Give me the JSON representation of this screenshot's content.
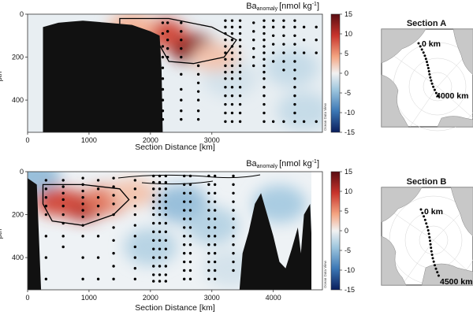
{
  "chart_data": [
    {
      "type": "heatmap",
      "panel": "A",
      "xlabel": "Section Distance [km]",
      "x_ticks": [
        0,
        1000,
        2000,
        3000
      ],
      "xlim": [
        0,
        4800
      ],
      "y_ticks": [
        0,
        200,
        400
      ],
      "ylim": [
        550,
        0
      ],
      "ylabel_partial": "…pth",
      "colorbar": {
        "label_main": "Ba",
        "label_sub": "anomaly",
        "label_unit": "[nmol kg",
        "label_exp": "-1",
        "label_close": "]",
        "ticks": [
          15,
          10,
          5,
          0,
          -5,
          -10,
          -15
        ],
        "range": [
          -15,
          15
        ]
      },
      "watermark": "Ocean Data View",
      "positive_anomalies": [
        {
          "x": 2700,
          "y": 160,
          "value": 13
        },
        {
          "x": 2200,
          "y": 90,
          "value": 9
        },
        {
          "x": 1700,
          "y": 60,
          "value": 4
        },
        {
          "x": 3050,
          "y": 200,
          "value": 3
        }
      ],
      "negative_anomalies": [
        {
          "x": 3300,
          "y": 300,
          "value": -2
        },
        {
          "x": 4300,
          "y": 250,
          "value": -3
        },
        {
          "x": 4500,
          "y": 450,
          "value": -3
        }
      ],
      "contour_outline": [
        [
          1500,
          20
        ],
        [
          2300,
          20
        ],
        [
          3000,
          60
        ],
        [
          3400,
          120
        ],
        [
          3200,
          200
        ],
        [
          2700,
          230
        ],
        [
          2300,
          220
        ],
        [
          2100,
          120
        ],
        [
          1500,
          50
        ]
      ],
      "bathymetry": [
        [
          0,
          550
        ],
        [
          250,
          550
        ],
        [
          250,
          60
        ],
        [
          500,
          40
        ],
        [
          700,
          35
        ],
        [
          900,
          30
        ],
        [
          1100,
          35
        ],
        [
          1300,
          40
        ],
        [
          1500,
          45
        ],
        [
          1700,
          50
        ],
        [
          1800,
          60
        ],
        [
          2000,
          80
        ],
        [
          2150,
          100
        ],
        [
          2180,
          250
        ],
        [
          2200,
          550
        ]
      ],
      "station_columns": [
        {
          "x": 2200,
          "y": [
            40,
            90,
            150,
            200,
            250,
            300,
            350,
            400,
            450,
            490
          ]
        },
        {
          "x": 2280,
          "y": [
            40,
            80,
            120,
            160,
            200
          ]
        },
        {
          "x": 2500,
          "y": [
            40,
            80,
            120,
            160,
            200,
            280,
            350,
            400,
            450,
            490
          ]
        },
        {
          "x": 2780,
          "y": [
            240,
            280,
            320,
            360,
            400,
            450,
            490
          ]
        },
        {
          "x": 3220,
          "y": [
            30,
            60,
            90,
            120,
            150,
            180,
            210,
            240,
            270,
            300,
            340,
            380,
            420,
            460,
            500
          ]
        },
        {
          "x": 3330,
          "y": [
            30,
            60,
            90,
            120,
            150,
            180,
            210,
            240,
            270,
            300,
            340,
            380,
            420,
            460,
            500
          ]
        },
        {
          "x": 3460,
          "y": [
            30,
            60,
            90,
            120,
            150,
            180,
            210,
            240,
            270,
            300,
            340,
            380,
            420,
            460,
            500
          ]
        },
        {
          "x": 3680,
          "y": [
            40,
            80,
            120,
            160,
            200,
            240
          ]
        },
        {
          "x": 3850,
          "y": [
            30,
            60,
            90,
            120,
            150,
            180,
            210,
            240,
            270,
            300,
            340,
            380,
            420,
            460,
            500
          ]
        },
        {
          "x": 4000,
          "y": [
            30,
            60,
            100,
            140,
            180,
            220,
            500
          ]
        },
        {
          "x": 4170,
          "y": [
            30,
            60,
            100,
            140,
            180,
            220,
            260,
            500
          ]
        },
        {
          "x": 4350,
          "y": [
            30,
            60,
            100,
            140,
            180,
            220,
            260,
            300,
            340,
            380,
            420,
            460,
            500
          ]
        },
        {
          "x": 4500,
          "y": [
            60,
            120,
            180,
            500
          ]
        },
        {
          "x": 4700,
          "y": [
            60,
            120,
            180,
            500
          ]
        }
      ]
    },
    {
      "type": "heatmap",
      "panel": "B",
      "xlabel": "Section Distance [km]",
      "x_ticks": [
        0,
        1000,
        2000,
        3000,
        4000
      ],
      "xlim": [
        0,
        4800
      ],
      "y_ticks": [
        0,
        200,
        400
      ],
      "ylim": [
        550,
        0
      ],
      "ylabel_partial": "…pth",
      "colorbar": {
        "label_main": "Ba",
        "label_sub": "anomaly",
        "label_unit": "[nmol kg",
        "label_exp": "-1",
        "label_close": "]",
        "ticks": [
          15,
          10,
          5,
          0,
          -5,
          -10,
          -15
        ],
        "range": [
          -15,
          15
        ]
      },
      "watermark": "Ocean Data View",
      "positive_anomalies": [
        {
          "x": 900,
          "y": 160,
          "value": 11
        },
        {
          "x": 500,
          "y": 140,
          "value": 9
        },
        {
          "x": 1300,
          "y": 130,
          "value": 7
        },
        {
          "x": 1700,
          "y": 100,
          "value": 3
        }
      ],
      "negative_anomalies": [
        {
          "x": 2500,
          "y": 150,
          "value": -6
        },
        {
          "x": 2000,
          "y": 350,
          "value": -4
        },
        {
          "x": 3000,
          "y": 250,
          "value": -4
        },
        {
          "x": 4100,
          "y": 150,
          "value": -5
        },
        {
          "x": 3300,
          "y": 450,
          "value": -2
        },
        {
          "x": 100,
          "y": 20,
          "value": -6
        }
      ],
      "contour_outline": [
        [
          250,
          60
        ],
        [
          900,
          60
        ],
        [
          1500,
          80
        ],
        [
          1650,
          130
        ],
        [
          1400,
          200
        ],
        [
          900,
          250
        ],
        [
          400,
          230
        ],
        [
          250,
          150
        ]
      ],
      "bathymetry": [
        [
          0,
          550
        ],
        [
          0,
          30
        ],
        [
          150,
          60
        ],
        [
          220,
          550
        ],
        [
          3450,
          550
        ],
        [
          3500,
          380
        ],
        [
          3600,
          280
        ],
        [
          3700,
          150
        ],
        [
          3800,
          100
        ],
        [
          3900,
          200
        ],
        [
          4000,
          300
        ],
        [
          4100,
          420
        ],
        [
          4200,
          450
        ],
        [
          4300,
          360
        ],
        [
          4400,
          260
        ],
        [
          4450,
          380
        ],
        [
          4500,
          200
        ],
        [
          4600,
          150
        ],
        [
          4650,
          480
        ],
        [
          4800,
          550
        ]
      ],
      "station_columns": [
        {
          "x": 300,
          "y": [
            40,
            80,
            120,
            160,
            200,
            300,
            400,
            500
          ]
        },
        {
          "x": 580,
          "y": [
            40,
            70,
            100,
            130,
            160,
            200,
            240,
            300,
            350
          ]
        },
        {
          "x": 900,
          "y": [
            30,
            60,
            90,
            120,
            150,
            180,
            210,
            250,
            300,
            400,
            500
          ]
        },
        {
          "x": 1150,
          "y": [
            40,
            80,
            120,
            160,
            200,
            300,
            400,
            500
          ]
        },
        {
          "x": 1400,
          "y": [
            30,
            70,
            110,
            150,
            200,
            260,
            320,
            380,
            440,
            500
          ]
        },
        {
          "x": 1750,
          "y": [
            40,
            80,
            120,
            160,
            200,
            250,
            300,
            350,
            400,
            450,
            500
          ]
        },
        {
          "x": 2050,
          "y": [
            20,
            50,
            80,
            110,
            140,
            170,
            200,
            240,
            280,
            320,
            360,
            400,
            440,
            480,
            510
          ]
        },
        {
          "x": 2150,
          "y": [
            20,
            50,
            80,
            110,
            140,
            170,
            200,
            240,
            280,
            320,
            360,
            400,
            440,
            480,
            510
          ]
        },
        {
          "x": 2250,
          "y": [
            20,
            50,
            80,
            110,
            140,
            170,
            200,
            240,
            280,
            320,
            360,
            400,
            440,
            480,
            510
          ]
        },
        {
          "x": 2550,
          "y": [
            20,
            60,
            100,
            140,
            180,
            220,
            260,
            300,
            340,
            380,
            420,
            460,
            500
          ]
        },
        {
          "x": 2650,
          "y": [
            20,
            60,
            100,
            140,
            180,
            220,
            260,
            300,
            340,
            380,
            420,
            460,
            500
          ]
        },
        {
          "x": 2950,
          "y": [
            20,
            60,
            100,
            140,
            180,
            220,
            260,
            300,
            340,
            380,
            420,
            460,
            500
          ]
        },
        {
          "x": 3050,
          "y": [
            20,
            60,
            100,
            140,
            180,
            220,
            260,
            300,
            340,
            380,
            420,
            460,
            500
          ]
        },
        {
          "x": 3350,
          "y": [
            20,
            60,
            100,
            140,
            180,
            220,
            260,
            300,
            340,
            380,
            420,
            460
          ]
        }
      ]
    }
  ],
  "maps": [
    {
      "title": "Section A",
      "start_label": "0 km",
      "end_label": "4000 km"
    },
    {
      "title": "Section B",
      "start_label": "0 km",
      "end_label": "4500 km"
    }
  ]
}
